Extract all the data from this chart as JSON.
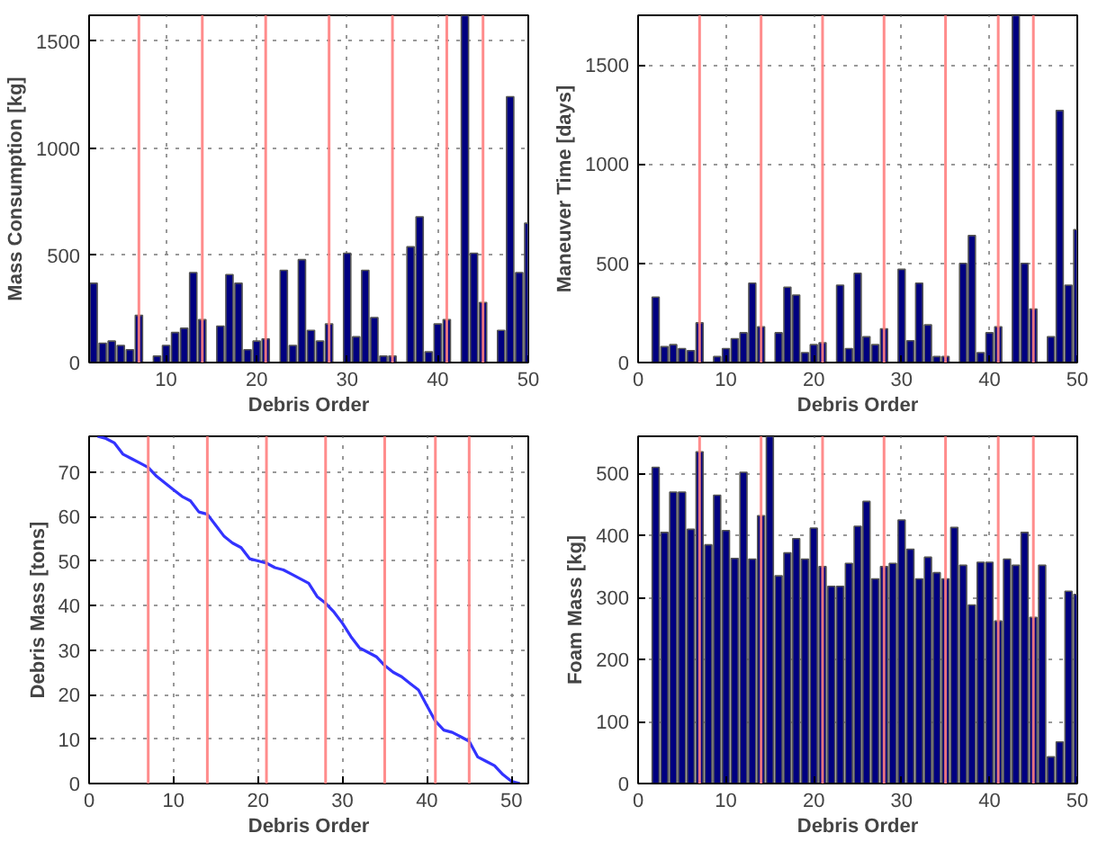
{
  "chart_data": [
    {
      "type": "bar",
      "xlabel": "Debris Order",
      "ylabel": "Mass Consumption [kg]",
      "x": [
        2,
        3,
        4,
        5,
        6,
        7,
        8,
        9,
        10,
        11,
        12,
        13,
        14,
        15,
        16,
        17,
        18,
        19,
        20,
        21,
        22,
        23,
        24,
        25,
        26,
        27,
        28,
        29,
        30,
        31,
        32,
        33,
        34,
        35,
        36,
        37,
        38,
        39,
        40,
        41,
        42,
        43,
        44,
        45,
        46,
        47,
        48,
        49,
        50
      ],
      "series": [
        {
          "color": "#000080",
          "values": [
            370,
            90,
            100,
            80,
            60,
            220,
            null,
            30,
            80,
            140,
            160,
            420,
            200,
            null,
            170,
            410,
            370,
            60,
            100,
            110,
            null,
            430,
            80,
            480,
            150,
            100,
            180,
            null,
            510,
            120,
            430,
            210,
            30,
            30,
            null,
            540,
            680,
            50,
            180,
            200,
            null,
            1620,
            510,
            280,
            null,
            150,
            1240,
            420,
            650
          ]
        }
      ],
      "xlim": [
        1.5,
        50
      ],
      "ylim": [
        0,
        1620
      ],
      "xticks": [
        10,
        20,
        30,
        40,
        50
      ],
      "yticks": [
        0,
        500,
        1000,
        1500
      ],
      "grid": true,
      "ref_lines": [
        {
          "axis": "x",
          "value": 7,
          "color": "#ff8080"
        },
        {
          "axis": "x",
          "value": 14,
          "color": "#ff8080"
        },
        {
          "axis": "x",
          "value": 21,
          "color": "#ff8080"
        },
        {
          "axis": "x",
          "value": 28,
          "color": "#ff8080"
        },
        {
          "axis": "x",
          "value": 35,
          "color": "#ff8080"
        },
        {
          "axis": "x",
          "value": 41,
          "color": "#ff8080"
        },
        {
          "axis": "x",
          "value": 45,
          "color": "#ff8080"
        }
      ]
    },
    {
      "type": "bar",
      "xlabel": "Debris Order",
      "ylabel": "Maneuver Time [days]",
      "x": [
        2,
        3,
        4,
        5,
        6,
        7,
        8,
        9,
        10,
        11,
        12,
        13,
        14,
        15,
        16,
        17,
        18,
        19,
        20,
        21,
        22,
        23,
        24,
        25,
        26,
        27,
        28,
        29,
        30,
        31,
        32,
        33,
        34,
        35,
        36,
        37,
        38,
        39,
        40,
        41,
        42,
        43,
        44,
        45,
        46,
        47,
        48,
        49,
        50
      ],
      "series": [
        {
          "color": "#000080",
          "values": [
            330,
            80,
            90,
            70,
            60,
            200,
            null,
            30,
            70,
            120,
            150,
            400,
            180,
            null,
            150,
            380,
            340,
            50,
            90,
            100,
            null,
            390,
            70,
            450,
            130,
            90,
            170,
            null,
            470,
            110,
            400,
            190,
            30,
            30,
            null,
            500,
            640,
            50,
            150,
            180,
            null,
            1750,
            500,
            270,
            null,
            130,
            1270,
            390,
            670
          ]
        }
      ],
      "xlim": [
        0,
        50
      ],
      "ylim": [
        0,
        1750
      ],
      "xticks": [
        0,
        10,
        20,
        30,
        40,
        50
      ],
      "yticks": [
        0,
        500,
        1000,
        1500
      ],
      "grid": true,
      "ref_lines": [
        {
          "axis": "x",
          "value": 7,
          "color": "#ff8080"
        },
        {
          "axis": "x",
          "value": 14,
          "color": "#ff8080"
        },
        {
          "axis": "x",
          "value": 21,
          "color": "#ff8080"
        },
        {
          "axis": "x",
          "value": 28,
          "color": "#ff8080"
        },
        {
          "axis": "x",
          "value": 35,
          "color": "#ff8080"
        },
        {
          "axis": "x",
          "value": 41,
          "color": "#ff8080"
        },
        {
          "axis": "x",
          "value": 45,
          "color": "#ff8080"
        }
      ]
    },
    {
      "type": "line",
      "xlabel": "Debris Order",
      "ylabel": "Debris Mass [tons]",
      "x": [
        1,
        2,
        3,
        4,
        5,
        6,
        7,
        8,
        9,
        10,
        11,
        12,
        13,
        14,
        15,
        16,
        17,
        18,
        19,
        20,
        21,
        22,
        23,
        24,
        25,
        26,
        27,
        28,
        29,
        30,
        31,
        32,
        33,
        34,
        35,
        36,
        37,
        38,
        39,
        40,
        41,
        42,
        43,
        44,
        45,
        46,
        47,
        48,
        49,
        50,
        51
      ],
      "series": [
        {
          "color": "#3333ff",
          "values": [
            78,
            77.5,
            76.5,
            74,
            73,
            72,
            71,
            69,
            67.5,
            66,
            64.5,
            63.5,
            61,
            60.5,
            58,
            55.5,
            54,
            53,
            50.5,
            50,
            49.5,
            48.5,
            48,
            47,
            46,
            45,
            42,
            40.5,
            38.5,
            36,
            33,
            30.5,
            29.5,
            28.5,
            26.5,
            25,
            24,
            22.5,
            21,
            17.5,
            14,
            12,
            11.5,
            10.5,
            9.5,
            6,
            5,
            4,
            2,
            0.5,
            0
          ]
        }
      ],
      "xlim": [
        0,
        52
      ],
      "ylim": [
        0,
        78
      ],
      "xticks": [
        0,
        10,
        20,
        30,
        40,
        50
      ],
      "yticks": [
        0,
        10,
        20,
        30,
        40,
        50,
        60,
        70
      ],
      "grid": true,
      "line_style": "solid",
      "marker": "none",
      "ref_lines": [
        {
          "axis": "x",
          "value": 7,
          "color": "#ff8080"
        },
        {
          "axis": "x",
          "value": 14,
          "color": "#ff8080"
        },
        {
          "axis": "x",
          "value": 21,
          "color": "#ff8080"
        },
        {
          "axis": "x",
          "value": 28,
          "color": "#ff8080"
        },
        {
          "axis": "x",
          "value": 35,
          "color": "#ff8080"
        },
        {
          "axis": "x",
          "value": 41,
          "color": "#ff8080"
        },
        {
          "axis": "x",
          "value": 45,
          "color": "#ff8080"
        }
      ]
    },
    {
      "type": "bar",
      "xlabel": "Debris Order",
      "ylabel": "Foam Mass [kg]",
      "x": [
        2,
        3,
        4,
        5,
        6,
        7,
        8,
        9,
        10,
        11,
        12,
        13,
        14,
        15,
        16,
        17,
        18,
        19,
        20,
        21,
        22,
        23,
        24,
        25,
        26,
        27,
        28,
        29,
        30,
        31,
        32,
        33,
        34,
        35,
        36,
        37,
        38,
        39,
        40,
        41,
        42,
        43,
        44,
        45,
        46,
        47,
        48,
        49,
        50
      ],
      "series": [
        {
          "color": "#000080",
          "values": [
            510,
            405,
            470,
            470,
            410,
            535,
            385,
            465,
            408,
            363,
            502,
            362,
            432,
            560,
            335,
            372,
            395,
            362,
            412,
            350,
            318,
            318,
            355,
            415,
            455,
            330,
            350,
            355,
            425,
            378,
            330,
            365,
            340,
            330,
            413,
            352,
            288,
            357,
            357,
            262,
            362,
            352,
            405,
            268,
            352,
            43,
            67,
            310,
            305
          ]
        }
      ],
      "xlim": [
        0,
        50
      ],
      "ylim": [
        0,
        560
      ],
      "xticks": [
        0,
        10,
        20,
        30,
        40,
        50
      ],
      "yticks": [
        0,
        100,
        200,
        300,
        400,
        500
      ],
      "grid": true,
      "ref_lines": [
        {
          "axis": "x",
          "value": 7,
          "color": "#ff8080"
        },
        {
          "axis": "x",
          "value": 14,
          "color": "#ff8080"
        },
        {
          "axis": "x",
          "value": 21,
          "color": "#ff8080"
        },
        {
          "axis": "x",
          "value": 28,
          "color": "#ff8080"
        },
        {
          "axis": "x",
          "value": 35,
          "color": "#ff8080"
        },
        {
          "axis": "x",
          "value": 41,
          "color": "#ff8080"
        },
        {
          "axis": "x",
          "value": 45,
          "color": "#ff8080"
        }
      ]
    }
  ]
}
